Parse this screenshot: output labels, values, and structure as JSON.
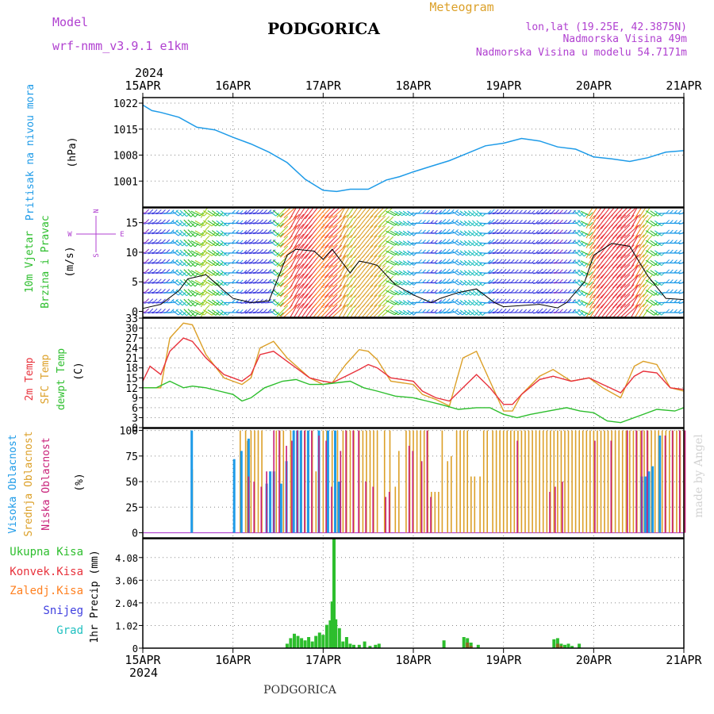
{
  "header": {
    "model_label": "Model",
    "model_name": "wrf-nmm_v3.9.1 e1km",
    "station": "PODGORICA",
    "product": "Meteogram",
    "lonlat": "lon,lat (19.25E, 42.3875N)",
    "elevation": "Nadmorska Visina 49m",
    "model_elevation": "Nadmorska Visina u modelu 54.7171m",
    "footer_station": "PODGORICA",
    "credit": "made by Angel",
    "year_top": "2024",
    "year_bottom": "2024"
  },
  "colors": {
    "pressure": "#1e9be8",
    "temp2m": "#e8323c",
    "sfc": "#dca028",
    "dewpt": "#2dbe2d",
    "high_cloud": "#1e9be8",
    "mid_cloud": "#dca028",
    "low_cloud": "#c81e78",
    "total_precip": "#2dbe2d",
    "convective": "#e8323c",
    "frozen": "#ff8020",
    "snow": "#4040e0",
    "hail": "#20c0c0",
    "wind_label": "#2dbe2d",
    "compass": "#b040d0",
    "header_purple": "#b040d0",
    "header_orange": "#dca028"
  },
  "chart_data": [
    {
      "type": "line",
      "panel": "pressure",
      "x_ticks": [
        "15APR",
        "16APR",
        "17APR",
        "18APR",
        "19APR",
        "20APR",
        "21APR"
      ],
      "ylabel_title": "Pritisak na nivou mora",
      "ylabel_unit": "(hPa)",
      "ylim": [
        994,
        1023.5
      ],
      "yticks": [
        1001,
        1008,
        1015,
        1022
      ],
      "grid": true,
      "series": [
        {
          "x": [
            0,
            0.1,
            0.2,
            0.4,
            0.6,
            0.8,
            1.0,
            1.2,
            1.4,
            1.6,
            1.8,
            2.0,
            2.15,
            2.3,
            2.5,
            2.7,
            2.85,
            3.0,
            3.2,
            3.4,
            3.6,
            3.8,
            4.0,
            4.2,
            4.4,
            4.6,
            4.8,
            5.0,
            5.2,
            5.4,
            5.6,
            5.8,
            6.0
          ],
          "values": [
            1021.5,
            1020,
            1019.5,
            1018.2,
            1015.5,
            1014.8,
            1012.8,
            1011,
            1008.8,
            1006,
            1001.5,
            998.5,
            998.2,
            998.8,
            998.8,
            1001.3,
            1002.2,
            1003.5,
            1005,
            1006.5,
            1008.5,
            1010.5,
            1011.2,
            1012.5,
            1011.8,
            1010.2,
            1009.6,
            1007.5,
            1007,
            1006.3,
            1007.3,
            1008.8,
            1009.2
          ]
        }
      ]
    },
    {
      "type": "line",
      "panel": "wind",
      "ylabel_title": [
        "10m Vjetar",
        "Brzina i Pravac"
      ],
      "ylabel_unit": "(m/s)",
      "compass": {
        "n": "N",
        "s": "S",
        "e": "E",
        "w": "W"
      },
      "ylim": [
        -1,
        17.5
      ],
      "yticks": [
        0,
        5,
        10,
        15
      ],
      "grid": true,
      "series": [
        {
          "name": "speed",
          "x": [
            0,
            0.2,
            0.4,
            0.5,
            0.7,
            0.9,
            1.0,
            1.2,
            1.4,
            1.6,
            1.7,
            1.9,
            2.0,
            2.1,
            2.3,
            2.4,
            2.5,
            2.6,
            2.8,
            3.0,
            3.2,
            3.3,
            3.5,
            3.7,
            3.9,
            4.0,
            4.2,
            4.4,
            4.6,
            4.7,
            4.9,
            5.0,
            5.2,
            5.4,
            5.6,
            5.8,
            6.0
          ],
          "values": [
            0.5,
            1.2,
            3.5,
            5.5,
            6.2,
            3.5,
            2.2,
            1.5,
            1.8,
            9.5,
            10.5,
            10.2,
            8.8,
            10.5,
            6.5,
            8.5,
            8.2,
            7.8,
            4.5,
            2.8,
            1.5,
            2.2,
            3.2,
            3.8,
            1.5,
            0.8,
            1.0,
            1.2,
            0.6,
            1.5,
            5.0,
            9.5,
            11.5,
            11.0,
            6.0,
            2.2,
            2.0
          ]
        }
      ]
    },
    {
      "type": "line",
      "panel": "temperature",
      "ylabel_lines": [
        "2m Temp",
        "SFC Temp",
        "dewpt Temp"
      ],
      "ylabel_unit": "(C)",
      "ylim": [
        0,
        33
      ],
      "yticks": [
        0,
        3,
        6,
        9,
        12,
        15,
        18,
        21,
        24,
        27,
        30,
        33
      ],
      "grid": true,
      "series": [
        {
          "name": "2m Temp",
          "x": [
            0,
            0.08,
            0.2,
            0.3,
            0.45,
            0.55,
            0.7,
            0.9,
            1.0,
            1.1,
            1.2,
            1.3,
            1.45,
            1.6,
            1.85,
            2.0,
            2.1,
            2.25,
            2.4,
            2.5,
            2.6,
            2.75,
            3.0,
            3.1,
            3.25,
            3.4,
            3.55,
            3.7,
            3.85,
            4.0,
            4.1,
            4.2,
            4.4,
            4.55,
            4.75,
            4.95,
            5.1,
            5.3,
            5.45,
            5.55,
            5.7,
            5.85,
            6.0
          ],
          "values": [
            14,
            18.5,
            16,
            23,
            27,
            26,
            21,
            16,
            15,
            14,
            16,
            22,
            23,
            20,
            15,
            14,
            13.5,
            15.5,
            17.5,
            19,
            18,
            15,
            14,
            11,
            9,
            8,
            12,
            16,
            12,
            7,
            7,
            10,
            14.5,
            15.5,
            14,
            15,
            13,
            10.5,
            15.5,
            17,
            16.5,
            12,
            11.5
          ]
        },
        {
          "name": "SFC Temp",
          "x": [
            0,
            0.08,
            0.2,
            0.3,
            0.45,
            0.55,
            0.7,
            0.9,
            1.0,
            1.1,
            1.2,
            1.3,
            1.45,
            1.6,
            1.85,
            2.0,
            2.1,
            2.25,
            2.4,
            2.5,
            2.6,
            2.75,
            3.0,
            3.1,
            3.25,
            3.4,
            3.55,
            3.7,
            3.85,
            4.0,
            4.1,
            4.2,
            4.4,
            4.55,
            4.75,
            4.95,
            5.1,
            5.3,
            5.45,
            5.55,
            5.7,
            5.85,
            6.0
          ],
          "values": [
            12,
            12,
            12,
            27,
            31.5,
            31,
            22,
            15,
            14,
            13,
            15,
            24,
            26,
            21,
            15,
            13,
            13.5,
            19,
            23.5,
            23,
            20.5,
            14,
            13,
            10,
            8.5,
            6.5,
            21,
            23,
            14,
            5,
            5,
            10,
            15.5,
            17.5,
            14,
            15,
            12,
            9,
            18.5,
            20,
            19,
            12,
            11
          ]
        },
        {
          "name": "dewpt Temp",
          "x": [
            0,
            0.15,
            0.3,
            0.45,
            0.55,
            0.7,
            0.85,
            1.0,
            1.1,
            1.2,
            1.35,
            1.55,
            1.7,
            1.85,
            2.0,
            2.15,
            2.3,
            2.45,
            2.6,
            2.8,
            3.0,
            3.15,
            3.3,
            3.5,
            3.7,
            3.85,
            4.0,
            4.15,
            4.3,
            4.5,
            4.7,
            4.85,
            5.0,
            5.15,
            5.3,
            5.5,
            5.7,
            5.9,
            6.0
          ],
          "values": [
            12,
            12,
            14,
            12,
            12.5,
            12,
            11,
            10,
            8,
            9,
            12,
            14,
            14.5,
            13,
            13,
            13.5,
            14,
            12,
            11,
            9.5,
            9,
            8,
            7,
            5.5,
            6,
            6,
            4,
            3,
            4,
            5,
            6,
            5,
            4.5,
            2,
            1.5,
            3.5,
            5.5,
            5,
            6
          ]
        }
      ]
    },
    {
      "type": "bar",
      "panel": "clouds",
      "ylabel_lines": [
        "Visoka Oblacnost",
        "Srednja Oblacnost",
        "Niska Oblacnost"
      ],
      "ylabel_unit": "(%)",
      "ylim": [
        -5,
        102
      ],
      "yticks": [
        0,
        25,
        50,
        75,
        100
      ],
      "grid": true,
      "series": [
        {
          "name": "Visoka Oblacnost",
          "x": [
            0.53,
            1.0,
            1.08,
            1.16,
            1.36,
            1.4,
            1.44,
            1.52,
            1.58,
            1.66,
            1.7,
            1.74,
            1.82,
            1.94,
            2.04,
            2.12,
            2.16,
            5.52,
            5.56,
            5.6,
            5.64,
            5.72
          ],
          "values": [
            100,
            72,
            80,
            92,
            48,
            60,
            60,
            48,
            70,
            100,
            100,
            100,
            100,
            100,
            100,
            100,
            50,
            55,
            55,
            60,
            65,
            95
          ]
        },
        {
          "name": "Srednja Oblacnost",
          "x": [
            0.53,
            1.06,
            1.12,
            1.14,
            1.18,
            1.22,
            1.26,
            1.3,
            1.46,
            1.5,
            1.54,
            1.62,
            1.7,
            1.74,
            1.78,
            1.82,
            1.86,
            1.9,
            1.98,
            2.02,
            2.08,
            2.14,
            2.2,
            2.24,
            2.28,
            2.32,
            2.38,
            2.42,
            2.46,
            2.5,
            2.54,
            2.58,
            2.66,
            2.72,
            2.78,
            2.82,
            2.9,
            2.94,
            2.98,
            3.02,
            3.06,
            3.1,
            3.14,
            3.18,
            3.22,
            3.26,
            3.3,
            3.36,
            3.4,
            3.46,
            3.5,
            3.54,
            3.58,
            3.62,
            3.66,
            3.72,
            3.76,
            3.8,
            3.86,
            3.9,
            3.94,
            3.98,
            4.02,
            4.06,
            4.1,
            4.14,
            4.18,
            4.22,
            4.26,
            4.3,
            4.34,
            4.38,
            4.42,
            4.46,
            4.5,
            4.54,
            4.58,
            4.62,
            4.66,
            4.7,
            4.74,
            4.78,
            4.82,
            4.86,
            4.9,
            4.94,
            4.98,
            5.02,
            5.06,
            5.1,
            5.14,
            5.18,
            5.22,
            5.26,
            5.3,
            5.34,
            5.38,
            5.42,
            5.46,
            5.5,
            5.54,
            5.58,
            5.62,
            5.66,
            5.7,
            5.74,
            5.78,
            5.82,
            5.86,
            5.9,
            5.94,
            5.98
          ],
          "values": [
            62,
            100,
            100,
            90,
            100,
            100,
            100,
            100,
            100,
            100,
            100,
            100,
            100,
            100,
            100,
            100,
            100,
            60,
            100,
            100,
            100,
            100,
            100,
            100,
            100,
            100,
            100,
            100,
            100,
            100,
            100,
            100,
            100,
            100,
            45,
            80,
            100,
            100,
            100,
            100,
            100,
            100,
            100,
            40,
            40,
            40,
            100,
            70,
            75,
            100,
            100,
            100,
            100,
            55,
            55,
            55,
            100,
            100,
            100,
            100,
            100,
            100,
            100,
            100,
            100,
            100,
            100,
            100,
            100,
            100,
            100,
            100,
            100,
            100,
            100,
            100,
            100,
            100,
            100,
            100,
            100,
            100,
            100,
            100,
            100,
            100,
            100,
            100,
            100,
            100,
            100,
            100,
            100,
            100,
            100,
            100,
            100,
            100,
            100,
            100,
            100,
            100,
            100,
            100,
            100,
            100,
            100,
            100,
            100,
            100,
            100,
            100
          ]
        },
        {
          "name": "Niska Oblacnost",
          "x": [
            1.14,
            1.2,
            1.28,
            1.34,
            1.42,
            1.48,
            1.56,
            1.62,
            1.68,
            1.76,
            1.84,
            1.92,
            2.0,
            2.06,
            2.16,
            2.22,
            2.3,
            2.36,
            2.44,
            2.52,
            2.66,
            2.7,
            2.92,
            2.96,
            3.06,
            3.12,
            3.16,
            4.12,
            4.48,
            4.54,
            4.62,
            4.98,
            5.16,
            5.34,
            5.44,
            5.5,
            5.56,
            5.76,
            5.84,
            5.92,
            5.98
          ],
          "values": [
            55,
            50,
            45,
            60,
            100,
            100,
            85,
            90,
            100,
            100,
            100,
            95,
            90,
            45,
            80,
            100,
            100,
            100,
            50,
            45,
            35,
            40,
            85,
            80,
            70,
            100,
            35,
            90,
            40,
            45,
            50,
            90,
            90,
            100,
            100,
            100,
            100,
            95,
            100,
            100,
            100
          ]
        }
      ]
    },
    {
      "type": "bar",
      "panel": "precipitation",
      "legend": [
        "Ukupna Kisa",
        "Konvek.Kisa",
        "Zaledj.Kisa",
        "Snijeg",
        "Grad"
      ],
      "ylabel_unit": "1hr Precip (mm)",
      "ylim": [
        0,
        4.93
      ],
      "yticks": [
        0,
        1.02,
        2.04,
        3.06,
        4.08
      ],
      "grid": true,
      "x_ticks": [
        "15APR",
        "16APR",
        "17APR",
        "18APR",
        "19APR",
        "20APR",
        "21APR"
      ],
      "series": [
        {
          "name": "Ukupna Kisa",
          "x": [
            1.6,
            1.64,
            1.68,
            1.72,
            1.76,
            1.8,
            1.84,
            1.88,
            1.92,
            1.96,
            2.0,
            2.04,
            2.08,
            2.1,
            2.12,
            2.14,
            2.18,
            2.22,
            2.26,
            2.3,
            2.34,
            2.4,
            2.46,
            2.52,
            2.58,
            2.62,
            3.34,
            3.56,
            3.6,
            3.64,
            3.72,
            4.56,
            4.6,
            4.64,
            4.68,
            4.72,
            4.76,
            4.84
          ],
          "values": [
            0.2,
            0.45,
            0.65,
            0.55,
            0.45,
            0.35,
            0.5,
            0.3,
            0.55,
            0.7,
            0.6,
            1.05,
            1.25,
            2.1,
            4.93,
            1.3,
            0.9,
            0.3,
            0.5,
            0.2,
            0.15,
            0.15,
            0.3,
            0.1,
            0.15,
            0.2,
            0.35,
            0.5,
            0.45,
            0.25,
            0.15,
            0.4,
            0.45,
            0.2,
            0.15,
            0.2,
            0.1,
            0.2
          ]
        },
        {
          "name": "Konvek.Kisa",
          "x": [
            3.6,
            3.64,
            4.6,
            4.64
          ],
          "values": [
            0.25,
            0.1,
            0.2,
            0.1
          ]
        }
      ]
    }
  ]
}
